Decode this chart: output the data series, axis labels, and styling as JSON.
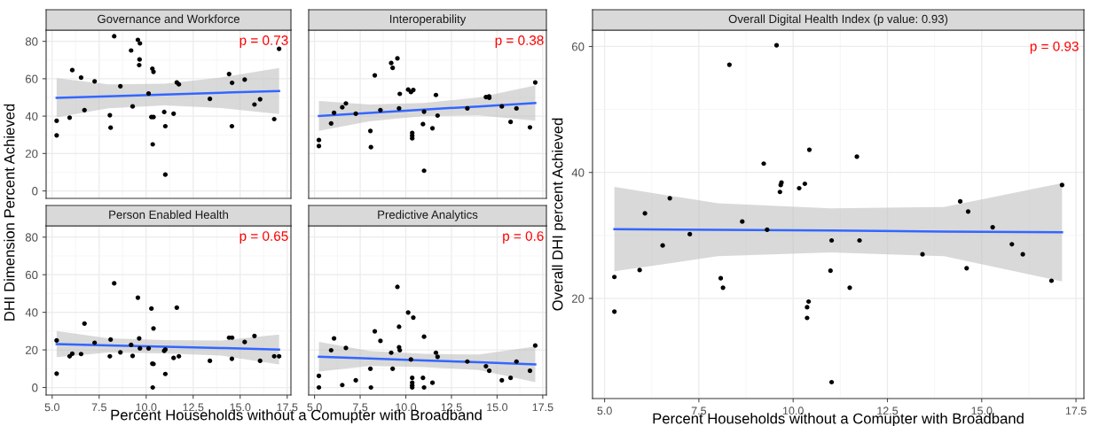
{
  "chart_data": [
    {
      "type": "scatter",
      "title": "Governance and Workforce",
      "ylabel": "DHI Dimension Percent Achieved",
      "annotations": [
        "p = 0.73"
      ],
      "xlim": [
        4.68,
        17.7
      ],
      "ylim": [
        -4,
        86
      ],
      "xticks": [
        5,
        7.5,
        10,
        12.5,
        15,
        17.5
      ],
      "yticks": [
        0,
        20,
        40,
        60,
        80
      ],
      "tick_labels": "y",
      "grid": true,
      "legend": false,
      "marker": "circle",
      "series": [
        {
          "type": "scatter",
          "color": "#000000",
          "x": [
            5.24,
            5.24,
            5.93,
            6.07,
            6.54,
            6.72,
            7.26,
            8.07,
            8.11,
            8.3,
            8.63,
            9.2,
            9.28,
            9.56,
            9.67,
            9.65,
            9.63,
            10.13,
            10.33,
            10.39,
            10.28,
            10.39,
            10.35,
            10.96,
            11.02,
            11.02,
            11.46,
            11.63,
            11.74,
            13.39,
            14.41,
            14.57,
            14.56,
            15.24,
            15.76,
            16.06,
            16.81,
            17.07
          ],
          "values": [
            37.5,
            29.7,
            39.2,
            64.6,
            60.6,
            43.2,
            58.6,
            40.5,
            33.8,
            82.7,
            56.0,
            75.1,
            45.2,
            80.8,
            78.9,
            70.3,
            67.3,
            52.1,
            65.4,
            63.7,
            39.5,
            39.5,
            24.9,
            42.2,
            34.6,
            8.7,
            41.3,
            58.0,
            57.0,
            49.2,
            62.5,
            57.8,
            34.6,
            59.5,
            46.2,
            49.0,
            38.4,
            76.0
          ]
        },
        {
          "type": "line",
          "color": "#3366ff",
          "x": [
            5.24,
            8,
            11,
            14,
            17.07
          ],
          "values": [
            49.8,
            50.6,
            51.5,
            52.5,
            53.4
          ],
          "marker": "none",
          "lower": [
            39.3,
            44.2,
            45.7,
            44.3,
            41.1
          ],
          "upper": [
            60.3,
            57.0,
            57.3,
            60.7,
            65.7
          ]
        }
      ]
    },
    {
      "type": "scatter",
      "title": "Interoperability",
      "annotations": [
        "p = 0.38"
      ],
      "xlim": [
        4.68,
        17.7
      ],
      "ylim": [
        -4,
        86
      ],
      "xticks": [
        5,
        7.5,
        10,
        12.5,
        15,
        17.5
      ],
      "yticks": [
        0,
        20,
        40,
        60,
        80
      ],
      "tick_labels": false,
      "grid": true,
      "legend": false,
      "marker": "circle",
      "series": [
        {
          "type": "scatter",
          "color": "#000000",
          "x": [
            5.24,
            5.24,
            5.91,
            6.07,
            6.52,
            6.72,
            7.26,
            8.06,
            8.09,
            8.3,
            8.61,
            9.2,
            9.28,
            9.54,
            9.67,
            9.63,
            10.13,
            10.28,
            10.41,
            10.35,
            10.35,
            10.35,
            10.94,
            11.0,
            11.0,
            11.46,
            11.65,
            11.74,
            13.37,
            14.39,
            14.56,
            14.57,
            15.26,
            15.74,
            16.06,
            16.8,
            17.09
          ],
          "values": [
            27.2,
            24.0,
            36.1,
            41.8,
            44.7,
            46.8,
            41.3,
            32.1,
            23.4,
            61.8,
            43.2,
            68.4,
            65.8,
            70.9,
            51.9,
            44.1,
            54.2,
            52.9,
            54.0,
            31.0,
            29.5,
            28.1,
            35.7,
            42.4,
            10.8,
            33.5,
            51.3,
            40.3,
            44.1,
            50.2,
            50.6,
            49.8,
            45.2,
            36.9,
            44.1,
            34.0,
            58.0
          ]
        },
        {
          "type": "line",
          "color": "#3366ff",
          "x": [
            5.24,
            8,
            11,
            14,
            17.09
          ],
          "values": [
            40.1,
            41.7,
            43.5,
            45.2,
            47.0
          ],
          "marker": "none",
          "lower": [
            32.1,
            37.2,
            40.0,
            40.4,
            37.6
          ],
          "upper": [
            48.1,
            46.2,
            47.0,
            50.0,
            56.4
          ]
        }
      ]
    },
    {
      "type": "scatter",
      "title": "Person Enabled Health",
      "xlabel": "Percent Households without a Comupter with Broadband",
      "annotations": [
        "p = 0.65"
      ],
      "xlim": [
        4.68,
        17.7
      ],
      "ylim": [
        -4,
        86
      ],
      "xticks": [
        {
          "value": 5,
          "label": "5.0"
        },
        7.5,
        {
          "value": 10,
          "label": "10.0"
        },
        12.5,
        {
          "value": 15,
          "label": "15.0"
        },
        17.5
      ],
      "yticks": [
        0,
        20,
        40,
        60,
        80
      ],
      "grid": true,
      "legend": false,
      "marker": "circle",
      "series": [
        {
          "type": "scatter",
          "color": "#000000",
          "x": [
            5.24,
            5.24,
            5.93,
            6.07,
            6.54,
            6.72,
            7.26,
            8.11,
            8.07,
            8.3,
            8.63,
            9.2,
            9.28,
            9.56,
            9.63,
            9.67,
            10.13,
            10.28,
            10.39,
            10.33,
            10.39,
            10.35,
            10.96,
            11.02,
            11.02,
            11.46,
            11.63,
            11.74,
            13.39,
            14.41,
            14.57,
            14.56,
            15.24,
            15.76,
            16.06,
            16.81,
            17.07
          ],
          "values": [
            25.0,
            7.4,
            16.6,
            18.0,
            17.8,
            34.0,
            23.8,
            25.5,
            16.6,
            55.4,
            18.7,
            22.7,
            16.8,
            47.8,
            26.1,
            20.8,
            20.8,
            42.0,
            31.4,
            12.7,
            12.5,
            0.0,
            19.5,
            20.2,
            7.2,
            15.7,
            42.5,
            16.6,
            14.2,
            26.5,
            26.5,
            15.3,
            24.2,
            27.4,
            14.2,
            16.6,
            16.6
          ]
        },
        {
          "type": "line",
          "color": "#3366ff",
          "x": [
            5.24,
            8,
            11,
            14,
            17.07
          ],
          "values": [
            23.1,
            22.4,
            21.7,
            21.0,
            20.2
          ],
          "marker": "none",
          "lower": [
            16.1,
            18.6,
            18.2,
            17.0,
            12.2
          ],
          "upper": [
            30.1,
            26.2,
            25.2,
            25.0,
            28.2
          ]
        }
      ]
    },
    {
      "type": "scatter",
      "title": "Predictive Analytics",
      "annotations": [
        "p = 0.6"
      ],
      "xlim": [
        4.68,
        17.7
      ],
      "ylim": [
        -4,
        86
      ],
      "xticks": [
        {
          "value": 5,
          "label": "5.0"
        },
        7.5,
        {
          "value": 10,
          "label": "10.0"
        },
        12.5,
        {
          "value": 15,
          "label": "15.0"
        },
        17.5
      ],
      "yticks": [
        0,
        20,
        40,
        60,
        80
      ],
      "tick_labels": "x",
      "grid": true,
      "legend": false,
      "marker": "circle",
      "series": [
        {
          "type": "scatter",
          "color": "#000000",
          "x": [
            5.24,
            5.24,
            5.91,
            6.07,
            6.52,
            6.72,
            7.26,
            8.06,
            8.09,
            8.3,
            8.61,
            9.2,
            9.28,
            9.54,
            9.63,
            9.63,
            9.67,
            10.13,
            10.28,
            10.41,
            10.35,
            10.35,
            10.35,
            10.35,
            10.94,
            11.0,
            11.0,
            11.46,
            11.65,
            11.74,
            13.37,
            14.39,
            14.57,
            15.26,
            15.74,
            16.06,
            16.8,
            17.09
          ],
          "values": [
            6.2,
            0,
            19.8,
            26.1,
            1.3,
            21.0,
            3.8,
            10.0,
            0,
            29.9,
            24.8,
            18.5,
            10.0,
            53.5,
            32.3,
            21.4,
            19.8,
            39.9,
            14.9,
            37.2,
            5.1,
            2.6,
            1.1,
            0,
            5.1,
            27.0,
            0,
            2.5,
            18.5,
            16.3,
            13.8,
            11.3,
            8.9,
            3.8,
            5.1,
            13.8,
            8.9,
            22.3
          ]
        },
        {
          "type": "line",
          "color": "#3366ff",
          "x": [
            5.24,
            8,
            11,
            14,
            17.09
          ],
          "values": [
            16.4,
            15.4,
            14.4,
            13.4,
            12.3
          ],
          "marker": "none",
          "lower": [
            8.5,
            11.4,
            10.9,
            9.3,
            2.8
          ],
          "upper": [
            24.3,
            19.4,
            17.9,
            17.5,
            21.8
          ]
        }
      ]
    },
    {
      "type": "scatter",
      "title": "Overall Digital Health Index (p value: 0.93)",
      "xlabel": "Percent Households without a Comupter with Broadband",
      "ylabel": "Overall DHI percent Achieved",
      "annotations": [
        "p = 0.93"
      ],
      "xlim": [
        4.68,
        17.71
      ],
      "ylim": [
        4.1,
        62.6
      ],
      "xticks": [
        {
          "value": 5,
          "label": "5.0"
        },
        7.5,
        {
          "value": 10,
          "label": "10.0"
        },
        12.5,
        {
          "value": 15,
          "label": "15.0"
        },
        17.5
      ],
      "yticks": [
        20,
        40,
        60
      ],
      "grid": true,
      "legend": false,
      "marker": "circle",
      "series": [
        {
          "type": "scatter",
          "color": "#000000",
          "x": [
            5.26,
            5.26,
            5.93,
            6.07,
            6.54,
            6.73,
            7.26,
            8.08,
            8.14,
            8.31,
            8.65,
            9.22,
            9.31,
            9.56,
            9.65,
            9.67,
            9.69,
            10.16,
            10.31,
            10.43,
            10.41,
            10.37,
            10.37,
            10.99,
            11.02,
            11.02,
            11.5,
            11.69,
            11.76,
            13.43,
            14.43,
            14.64,
            14.6,
            15.29,
            15.8,
            16.09,
            16.85,
            17.13
          ],
          "values": [
            23.4,
            17.9,
            24.5,
            33.5,
            28.4,
            35.9,
            30.2,
            23.2,
            21.7,
            57.1,
            32.2,
            41.4,
            30.9,
            60.2,
            36.9,
            38.0,
            38.4,
            37.5,
            38.2,
            43.6,
            19.5,
            18.6,
            16.9,
            24.4,
            29.2,
            6.7,
            21.7,
            42.5,
            29.2,
            27.0,
            35.4,
            33.8,
            24.8,
            31.3,
            28.6,
            27.0,
            22.8,
            38.0
          ]
        },
        {
          "type": "line",
          "color": "#3366ff",
          "x": [
            5.26,
            8,
            11,
            14,
            17.13
          ],
          "values": [
            31.0,
            30.9,
            30.8,
            30.6,
            30.5
          ],
          "marker": "none",
          "lower": [
            24.3,
            26.7,
            27.3,
            26.7,
            22.7
          ],
          "upper": [
            37.7,
            35.1,
            34.3,
            34.5,
            38.3
          ]
        }
      ]
    }
  ]
}
